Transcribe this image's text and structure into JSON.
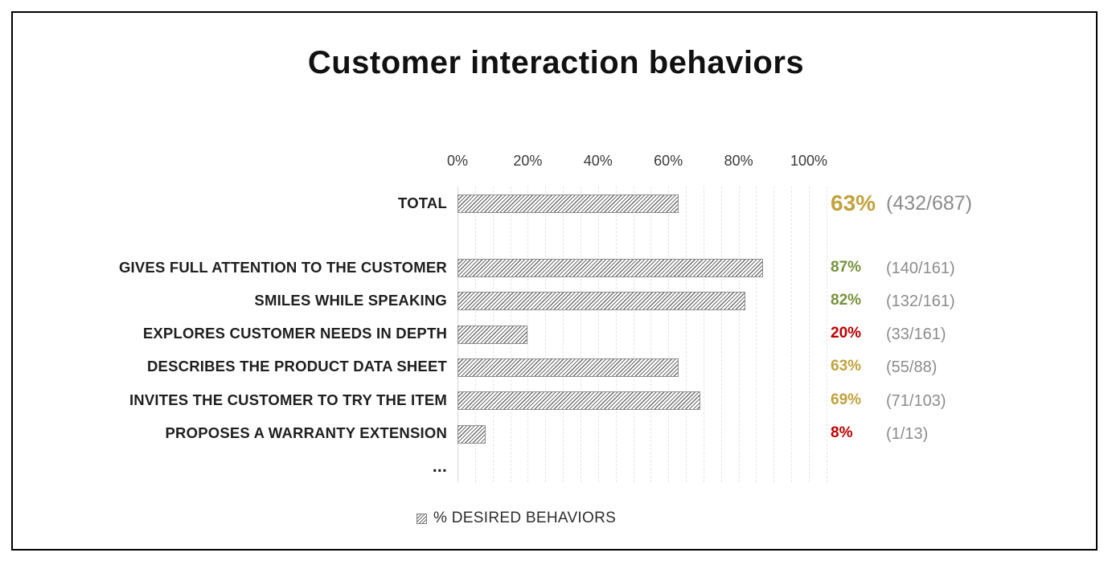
{
  "title": "Customer interaction behaviors",
  "legend": {
    "label": "% DESIRED BEHAVIORS",
    "swatch": "gray-diagonal-hatch-square"
  },
  "chart_data": {
    "type": "bar",
    "orientation": "horizontal",
    "title": "Customer interaction behaviors",
    "series_name": "% DESIRED BEHAVIORS",
    "xlim": [
      0,
      100
    ],
    "x_ticks": [
      "0%",
      "20%",
      "40%",
      "60%",
      "80%",
      "100%"
    ],
    "grid": "vertical-dashed-every-5pct",
    "legend_position": "bottom",
    "rows": [
      {
        "label": "TOTAL",
        "value": 63,
        "value_label": "63%",
        "fraction_label": "(432/687)",
        "numerator": 432,
        "denominator": 687,
        "value_color": "#C2A23C",
        "emphasized": true
      },
      {
        "label": "GIVES FULL ATTENTION TO THE CUSTOMER",
        "value": 87,
        "value_label": "87%",
        "fraction_label": "(140/161)",
        "numerator": 140,
        "denominator": 161,
        "value_color": "#76923C",
        "emphasized": false
      },
      {
        "label": "SMILES WHILE SPEAKING",
        "value": 82,
        "value_label": "82%",
        "fraction_label": "(132/161)",
        "numerator": 132,
        "denominator": 161,
        "value_color": "#76923C",
        "emphasized": false
      },
      {
        "label": "EXPLORES CUSTOMER NEEDS IN DEPTH",
        "value": 20,
        "value_label": "20%",
        "fraction_label": "(33/161)",
        "numerator": 33,
        "denominator": 161,
        "value_color": "#C00000",
        "emphasized": false
      },
      {
        "label": "DESCRIBES THE PRODUCT DATA SHEET",
        "value": 63,
        "value_label": "63%",
        "fraction_label": "(55/88)",
        "numerator": 55,
        "denominator": 88,
        "value_color": "#C2A23C",
        "emphasized": false
      },
      {
        "label": "INVITES THE CUSTOMER TO TRY THE ITEM",
        "value": 69,
        "value_label": "69%",
        "fraction_label": "(71/103)",
        "numerator": 71,
        "denominator": 103,
        "value_color": "#C2A23C",
        "emphasized": false
      },
      {
        "label": "PROPOSES A WARRANTY EXTENSION",
        "value": 8,
        "value_label": "8%",
        "fraction_label": "(1/13)",
        "numerator": 1,
        "denominator": 13,
        "value_color": "#C00000",
        "emphasized": false
      },
      {
        "label": "...",
        "value": null,
        "value_label": "",
        "fraction_label": "",
        "value_color": "",
        "emphasized": false
      }
    ],
    "colors": {
      "gold": "#C2A23C",
      "green": "#76923C",
      "red": "#C00000",
      "fraction_gray": "#8C8C8C",
      "bar_hatch": "#6D6D6D",
      "bar_border": "#8F8F8F",
      "gridline": "#E5E5E5",
      "frame_border": "#000000"
    }
  }
}
